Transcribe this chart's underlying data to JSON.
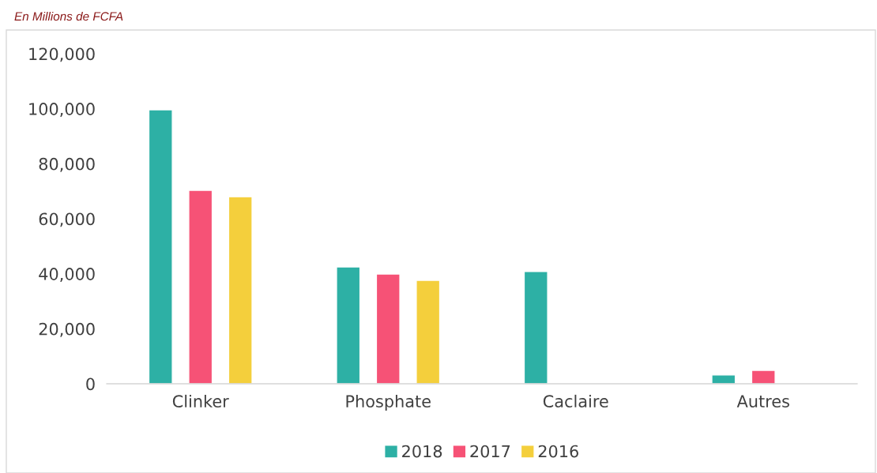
{
  "chart_data": {
    "type": "bar",
    "categories": [
      "Clinker",
      "Phosphate",
      "Caclaire",
      "Autres"
    ],
    "series": [
      {
        "name": "2018",
        "color": "#2db0a5",
        "values": [
          99600,
          42500,
          40800,
          3200
        ]
      },
      {
        "name": "2017",
        "color": "#f65276",
        "values": [
          70300,
          39900,
          null,
          4900
        ]
      },
      {
        "name": "2016",
        "color": "#f4cf3c",
        "values": [
          68000,
          37600,
          null,
          null
        ]
      }
    ],
    "ylim": [
      0,
      120000
    ],
    "yticks": [
      {
        "value": 0,
        "label": "0"
      },
      {
        "value": 20000,
        "label": "20,000"
      },
      {
        "value": 40000,
        "label": "40,000"
      },
      {
        "value": 60000,
        "label": "60,000"
      },
      {
        "value": 80000,
        "label": "80,000"
      },
      {
        "value": 100000,
        "label": "100,000"
      },
      {
        "value": 120000,
        "label": "120,000"
      }
    ],
    "annotations": [
      "En Millions de FCFA"
    ],
    "grid": false,
    "legend": "bottom"
  }
}
